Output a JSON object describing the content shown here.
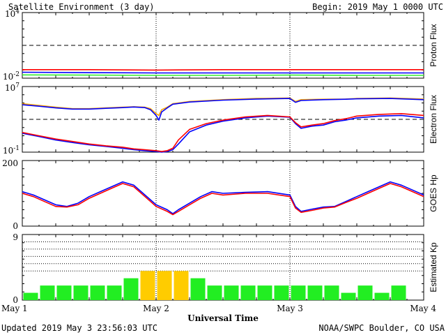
{
  "header": {
    "title": "Satellite Environment (3 day)",
    "begin": "Begin:  2019 May 1 0000 UTC"
  },
  "footer": {
    "updated": "Updated 2019 May  3 23:56:03 UTC",
    "credit": "NOAA/SWPC Boulder, CO USA"
  },
  "colors": {
    "red": "#ff0000",
    "blue": "#0000ff",
    "green": "#33ee33",
    "orange": "#ffa500",
    "kp_green": "#22ee22",
    "kp_yellow": "#ffcc00"
  },
  "chart_data": [
    {
      "id": "proton",
      "type": "line",
      "ylabel": "Proton Flux",
      "yscale": "log",
      "ylim": [
        0.01,
        10000
      ],
      "yticks": [
        {
          "value": 10000,
          "base": "10",
          "exp": "4"
        },
        {
          "value": 0.01,
          "base": "10",
          "exp": "-2"
        }
      ],
      "threshold": 10,
      "xlim": [
        0,
        72
      ],
      "series": [
        {
          "color": "red",
          "x": [
            0,
            12,
            24,
            36,
            48,
            60,
            72
          ],
          "values": [
            0.06,
            0.06,
            0.055,
            0.06,
            0.06,
            0.06,
            0.06
          ]
        },
        {
          "color": "blue",
          "x": [
            0,
            12,
            24,
            36,
            48,
            60,
            72
          ],
          "values": [
            0.035,
            0.032,
            0.03,
            0.03,
            0.03,
            0.03,
            0.03
          ]
        },
        {
          "color": "green",
          "x": [
            0,
            12,
            24,
            36,
            48,
            60,
            72
          ],
          "values": [
            0.02,
            0.019,
            0.018,
            0.018,
            0.019,
            0.018,
            0.018
          ]
        }
      ]
    },
    {
      "id": "electron",
      "type": "line",
      "ylabel": "Electron Flux",
      "yscale": "log",
      "ylim": [
        0.1,
        10000000
      ],
      "yticks": [
        {
          "value": 10000000,
          "base": "10",
          "exp": "7"
        },
        {
          "value": 0.1,
          "base": "10",
          "exp": "-1"
        }
      ],
      "threshold": 1000,
      "xlim": [
        0,
        72
      ],
      "series": [
        {
          "color": "blue",
          "x": [
            0,
            3,
            6,
            9,
            12,
            15,
            18,
            20,
            22,
            24,
            25,
            26,
            27,
            28,
            30,
            33,
            36,
            40,
            44,
            48,
            49,
            50,
            52,
            54,
            56,
            58,
            60,
            64,
            68,
            72
          ],
          "values": [
            20,
            8,
            3,
            1.5,
            0.8,
            0.5,
            0.3,
            0.2,
            0.15,
            0.12,
            0.1,
            0.12,
            0.2,
            1,
            30,
            200,
            600,
            1500,
            2500,
            1800,
            300,
            80,
            150,
            200,
            500,
            800,
            1500,
            2500,
            3000,
            1500
          ]
        },
        {
          "color": "red",
          "x": [
            0,
            3,
            6,
            9,
            12,
            15,
            18,
            20,
            22,
            24,
            25,
            26,
            27,
            28,
            30,
            33,
            36,
            40,
            44,
            48,
            49,
            50,
            52,
            54,
            56,
            58,
            60,
            64,
            68,
            72
          ],
          "values": [
            25,
            10,
            4,
            2,
            1,
            0.6,
            0.4,
            0.25,
            0.2,
            0.15,
            0.12,
            0.15,
            0.3,
            3,
            60,
            300,
            800,
            2000,
            3000,
            2000,
            400,
            120,
            200,
            300,
            700,
            1200,
            2500,
            4000,
            5000,
            3000
          ]
        },
        {
          "color": "orange",
          "x": [
            0,
            3,
            6,
            9,
            12,
            15,
            18,
            20,
            22,
            23,
            24,
            24.5,
            25,
            26,
            27,
            30,
            36,
            42,
            48,
            49,
            50,
            54,
            58,
            60,
            66,
            72
          ],
          "values": [
            80000,
            50000,
            30000,
            20000,
            20000,
            25000,
            30000,
            35000,
            30000,
            20000,
            5000,
            3000,
            15000,
            30000,
            80000,
            150000,
            250000,
            350000,
            400000,
            150000,
            250000,
            280000,
            300000,
            350000,
            400000,
            300000
          ]
        },
        {
          "color": "blue",
          "x": [
            0,
            3,
            6,
            9,
            12,
            15,
            18,
            20,
            22,
            23,
            24,
            24.5,
            25,
            26,
            27,
            30,
            36,
            42,
            48,
            49,
            50,
            54,
            58,
            60,
            66,
            72
          ],
          "values": [
            60000,
            40000,
            25000,
            18000,
            18000,
            22000,
            27000,
            32000,
            27000,
            15000,
            3000,
            800,
            8000,
            25000,
            70000,
            130000,
            220000,
            300000,
            350000,
            120000,
            200000,
            250000,
            280000,
            320000,
            350000,
            250000
          ]
        }
      ]
    },
    {
      "id": "goes_hp",
      "type": "line",
      "ylabel": "GOES Hp",
      "yscale": "linear",
      "ylim": [
        0,
        200
      ],
      "yticks": [
        {
          "value": 200,
          "label": "200"
        },
        {
          "value": 0,
          "label": "0"
        }
      ],
      "xlim": [
        0,
        72
      ],
      "series": [
        {
          "color": "blue",
          "x": [
            0,
            2,
            4,
            6,
            8,
            10,
            12,
            14,
            16,
            18,
            20,
            22,
            24,
            26,
            27,
            28,
            30,
            32,
            34,
            36,
            40,
            44,
            48,
            49,
            50,
            52,
            54,
            56,
            58,
            60,
            62,
            64,
            66,
            68,
            70,
            72
          ],
          "values": [
            105,
            95,
            80,
            65,
            60,
            70,
            90,
            105,
            120,
            135,
            125,
            95,
            65,
            50,
            38,
            50,
            70,
            90,
            105,
            100,
            103,
            105,
            95,
            60,
            45,
            52,
            58,
            60,
            75,
            90,
            105,
            120,
            135,
            125,
            110,
            95
          ]
        },
        {
          "color": "red",
          "x": [
            0,
            2,
            4,
            6,
            8,
            10,
            12,
            14,
            16,
            18,
            20,
            22,
            24,
            26,
            27,
            28,
            30,
            32,
            34,
            36,
            40,
            44,
            48,
            49,
            50,
            52,
            54,
            56,
            58,
            60,
            62,
            64,
            66,
            68,
            70,
            72
          ],
          "values": [
            100,
            90,
            75,
            60,
            58,
            65,
            85,
            100,
            115,
            130,
            120,
            90,
            60,
            45,
            35,
            45,
            65,
            85,
            100,
            95,
            100,
            100,
            90,
            55,
            42,
            48,
            55,
            58,
            72,
            85,
            100,
            115,
            130,
            120,
            105,
            90
          ]
        }
      ]
    },
    {
      "id": "kp",
      "type": "bar",
      "ylabel": "Estimated Kp",
      "ylim": [
        0,
        9
      ],
      "yticks": [
        {
          "value": 9,
          "label": "9"
        },
        {
          "value": 0,
          "label": "0"
        }
      ],
      "x_start_hours": [
        0,
        3,
        6,
        9,
        12,
        15,
        18,
        21,
        24,
        27,
        30,
        33,
        36,
        39,
        42,
        45,
        48,
        51,
        54,
        57,
        60,
        63,
        66,
        69
      ],
      "values": [
        1,
        2,
        2,
        2,
        2,
        2,
        3,
        4,
        4,
        4,
        3,
        2,
        2,
        2,
        2,
        2,
        2,
        2,
        2,
        1,
        2,
        1,
        2,
        0
      ],
      "bar_colors": [
        "kp_green",
        "kp_green",
        "kp_green",
        "kp_green",
        "kp_green",
        "kp_green",
        "kp_green",
        "kp_yellow",
        "kp_yellow",
        "kp_yellow",
        "kp_green",
        "kp_green",
        "kp_green",
        "kp_green",
        "kp_green",
        "kp_green",
        "kp_green",
        "kp_green",
        "kp_green",
        "kp_green",
        "kp_green",
        "kp_green",
        "kp_green",
        "kp_green"
      ]
    }
  ],
  "x_axis": {
    "label": "Universal Time",
    "ticks": [
      {
        "hours": 0,
        "label": "May 1"
      },
      {
        "hours": 24,
        "label": "May 2"
      },
      {
        "hours": 48,
        "label": "May 3"
      },
      {
        "hours": 72,
        "label": "May 4"
      }
    ]
  }
}
